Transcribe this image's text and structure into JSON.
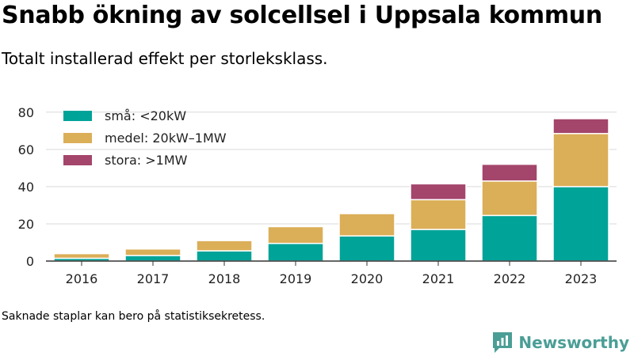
{
  "header": {
    "title": "Snabb ökning av solcellsel i Uppsala kommun",
    "subtitle": "Totalt installerad effekt per storleksklass."
  },
  "footer": {
    "note": "Saknade staplar kan bero på statistiksekretess.",
    "brand": "Newsworthy"
  },
  "colors": {
    "small": "#00a398",
    "medium": "#dbae58",
    "large": "#a4456b",
    "grid": "#d9d9d9",
    "brand": "#4a9e96"
  },
  "chart_data": {
    "type": "bar",
    "stacked": true,
    "categories": [
      "2016",
      "2017",
      "2018",
      "2019",
      "2020",
      "2021",
      "2022",
      "2023"
    ],
    "series": [
      {
        "name": "små: <20kW",
        "color": "#00a398",
        "values": [
          1.5,
          3,
          5.5,
          9.5,
          13.5,
          17,
          24.5,
          40
        ]
      },
      {
        "name": "medel: 20kW–1MW",
        "color": "#dbae58",
        "values": [
          2.5,
          3.5,
          5.5,
          9,
          12,
          16,
          18.5,
          28.5
        ]
      },
      {
        "name": "stora: >1MW",
        "color": "#a4456b",
        "values": [
          0,
          0,
          0,
          0,
          0,
          8.5,
          9,
          8
        ]
      }
    ],
    "ylim": [
      0,
      85
    ],
    "yticks": [
      0,
      20,
      40,
      60,
      80
    ],
    "grid": true,
    "legend_position": "top-left"
  }
}
